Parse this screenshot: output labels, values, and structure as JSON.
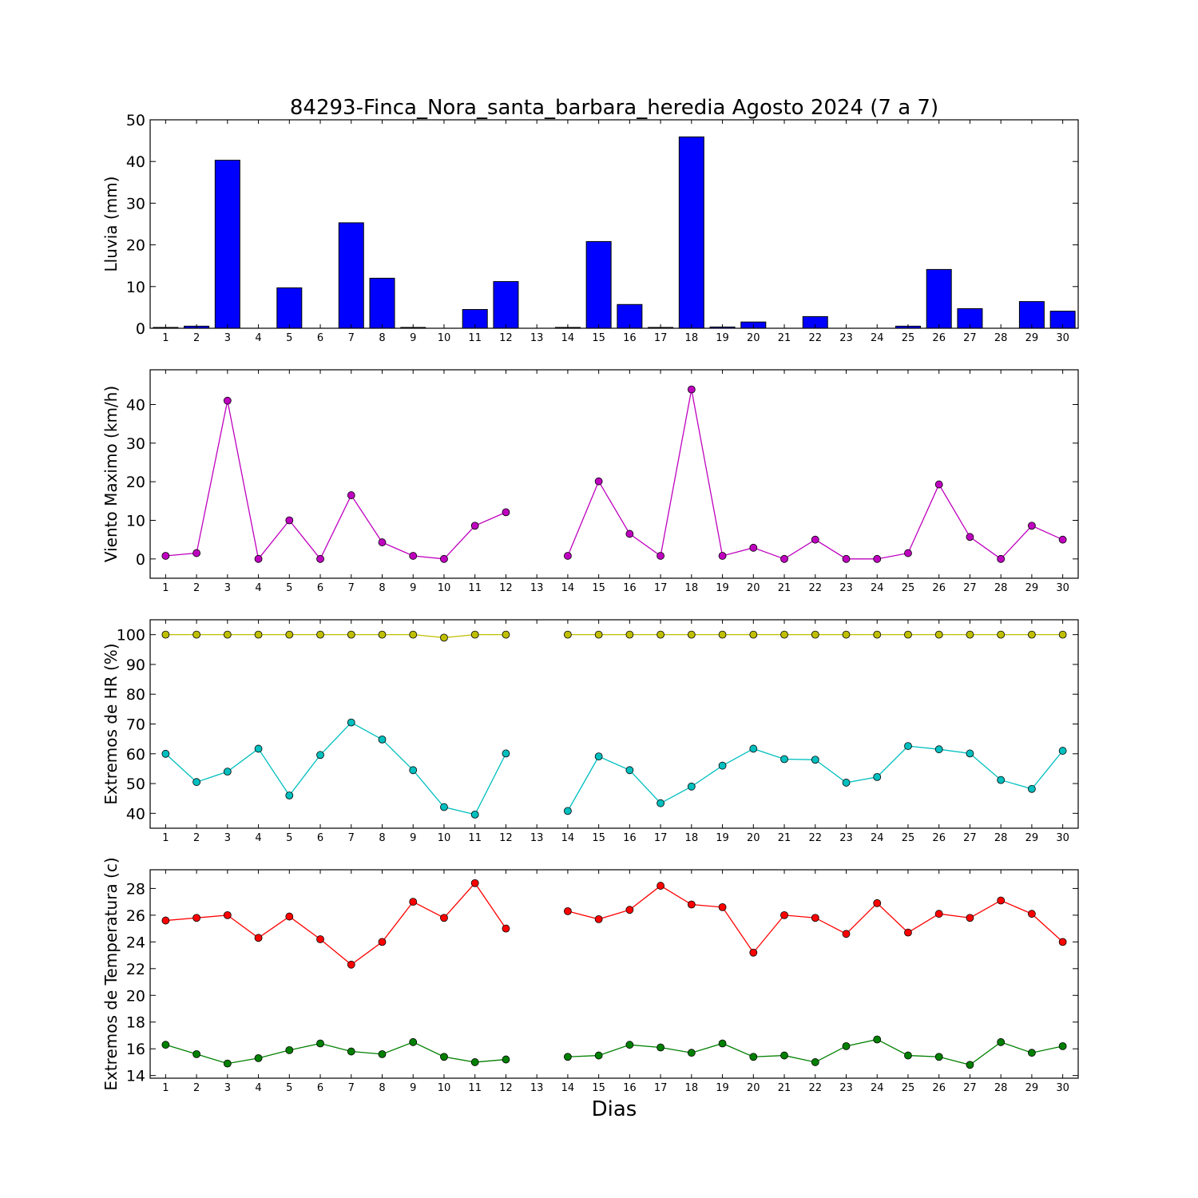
{
  "title": "84293-Finca_Nora_santa_barbara_heredia Agosto 2024  (7 a 7)",
  "xlabel": "Dias",
  "chart_data": [
    {
      "type": "bar",
      "ylabel": "Lluvia (mm)",
      "ylim": [
        0,
        50
      ],
      "yticks": [
        0,
        10,
        20,
        30,
        40,
        50
      ],
      "xlim": [
        0.5,
        30.5
      ],
      "x": [
        1,
        2,
        3,
        4,
        5,
        6,
        7,
        8,
        9,
        10,
        11,
        12,
        13,
        14,
        15,
        16,
        17,
        18,
        19,
        20,
        21,
        22,
        23,
        24,
        25,
        26,
        27,
        28,
        29,
        30
      ],
      "series": [
        {
          "color": "#0000ff",
          "values": [
            0.2,
            0.5,
            40.3,
            0,
            9.7,
            0,
            25.3,
            12.0,
            0.2,
            0,
            4.5,
            11.2,
            0,
            0.2,
            20.8,
            5.7,
            0.2,
            45.9,
            0.3,
            1.5,
            0,
            2.8,
            0,
            0,
            0.5,
            14.1,
            4.7,
            0,
            6.4,
            4.1
          ]
        }
      ]
    },
    {
      "type": "line",
      "ylabel": "Viento Maximo (km/h)",
      "ylim": [
        -5,
        49
      ],
      "yticks": [
        0,
        10,
        20,
        30,
        40
      ],
      "xlim": [
        0.5,
        30.5
      ],
      "x": [
        1,
        2,
        3,
        4,
        5,
        6,
        7,
        8,
        9,
        10,
        11,
        12,
        13,
        14,
        15,
        16,
        17,
        18,
        19,
        20,
        21,
        22,
        23,
        24,
        25,
        26,
        27,
        28,
        29,
        30
      ],
      "series": [
        {
          "color": "#bf00bf",
          "values": [
            0.8,
            1.5,
            41.0,
            0,
            10.0,
            0,
            16.5,
            4.3,
            0.8,
            0,
            8.6,
            12.1,
            null,
            0.8,
            20.1,
            6.5,
            0.8,
            43.9,
            0.8,
            2.9,
            0,
            5.0,
            0,
            0,
            1.5,
            19.3,
            5.7,
            0,
            8.6,
            5.0
          ]
        }
      ]
    },
    {
      "type": "line",
      "ylabel": "Extremos de HR (%)",
      "ylim": [
        35,
        105
      ],
      "yticks": [
        40,
        50,
        60,
        70,
        80,
        90,
        100
      ],
      "xlim": [
        0.5,
        30.5
      ],
      "x": [
        1,
        2,
        3,
        4,
        5,
        6,
        7,
        8,
        9,
        10,
        11,
        12,
        13,
        14,
        15,
        16,
        17,
        18,
        19,
        20,
        21,
        22,
        23,
        24,
        25,
        26,
        27,
        28,
        29,
        30
      ],
      "series": [
        {
          "color": "#bfbf00",
          "values": [
            100,
            100,
            100,
            100,
            100,
            100,
            100,
            100,
            100,
            99,
            100,
            100,
            null,
            100,
            100,
            100,
            100,
            100,
            100,
            100,
            100,
            100,
            100,
            100,
            100,
            100,
            100,
            100,
            100,
            100
          ]
        },
        {
          "color": "#00bfbf",
          "values": [
            60,
            50.5,
            54,
            61.7,
            46,
            59.6,
            70.5,
            64.8,
            54.5,
            42.1,
            39.6,
            60.1,
            null,
            40.8,
            59.1,
            54.5,
            43.4,
            49,
            56,
            61.7,
            58.2,
            58,
            50.3,
            52.2,
            62.6,
            61.5,
            60.1,
            51.2,
            48.2,
            61
          ]
        }
      ]
    },
    {
      "type": "line",
      "ylabel": "Extremos de Temperatura (c)",
      "ylim": [
        13.8,
        29.4
      ],
      "yticks": [
        14,
        16,
        18,
        20,
        22,
        24,
        26,
        28
      ],
      "xlim": [
        0.5,
        30.5
      ],
      "x": [
        1,
        2,
        3,
        4,
        5,
        6,
        7,
        8,
        9,
        10,
        11,
        12,
        13,
        14,
        15,
        16,
        17,
        18,
        19,
        20,
        21,
        22,
        23,
        24,
        25,
        26,
        27,
        28,
        29,
        30
      ],
      "series": [
        {
          "color": "#ff0000",
          "values": [
            25.6,
            25.8,
            26.0,
            24.3,
            25.9,
            24.2,
            22.3,
            24.0,
            27.0,
            25.8,
            28.4,
            25.0,
            null,
            26.3,
            25.7,
            26.4,
            28.2,
            26.8,
            26.6,
            23.2,
            26.0,
            25.8,
            24.6,
            26.9,
            24.7,
            26.1,
            25.8,
            27.1,
            26.1,
            24.0
          ]
        },
        {
          "color": "#008000",
          "values": [
            16.3,
            15.6,
            14.9,
            15.3,
            15.9,
            16.4,
            15.8,
            15.6,
            16.5,
            15.4,
            15.0,
            15.2,
            null,
            15.4,
            15.5,
            16.3,
            16.1,
            15.7,
            16.4,
            15.4,
            15.5,
            15.0,
            16.2,
            16.7,
            15.5,
            15.4,
            14.8,
            16.5,
            15.7,
            16.2
          ]
        }
      ]
    }
  ]
}
